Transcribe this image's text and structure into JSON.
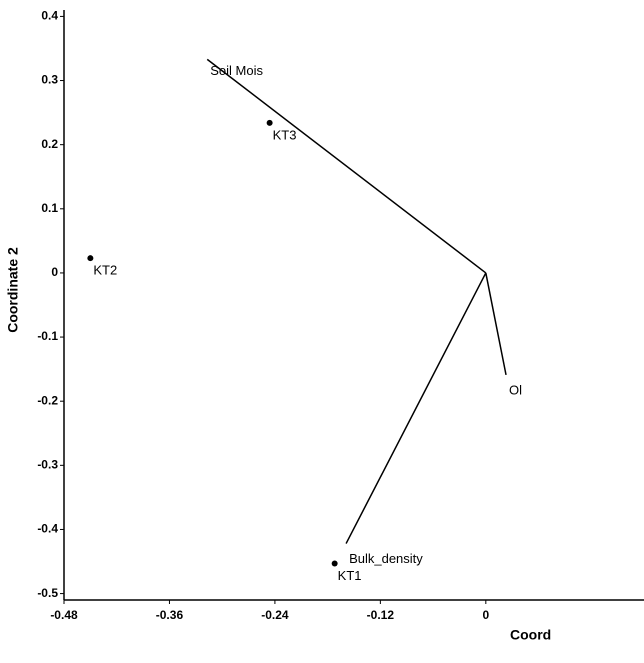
{
  "chart_data": {
    "type": "biplot",
    "x_label": "Coord",
    "y_label": "Coordinate 2",
    "xlim": [
      -0.48,
      0.18
    ],
    "ylim": [
      -0.51,
      0.41
    ],
    "xticks": [
      -0.48,
      -0.36,
      -0.24,
      -0.12,
      0
    ],
    "yticks": [
      0.4,
      0.3,
      0.2,
      0.1,
      0,
      -0.1,
      -0.2,
      -0.3,
      -0.4,
      -0.5
    ],
    "points": {
      "labels": [
        "KT3",
        "KT2",
        "KT1"
      ],
      "x": [
        -0.246,
        -0.45,
        -0.172
      ],
      "y": [
        0.234,
        0.023,
        -0.453
      ],
      "color": "#000000"
    },
    "vectors": {
      "labels": [
        "Soil Mois",
        "Bulk_density",
        "Ol"
      ],
      "x": [
        -0.317,
        -0.159,
        0.023
      ],
      "y": [
        0.333,
        -0.422,
        -0.159
      ],
      "color": "#000000"
    }
  }
}
